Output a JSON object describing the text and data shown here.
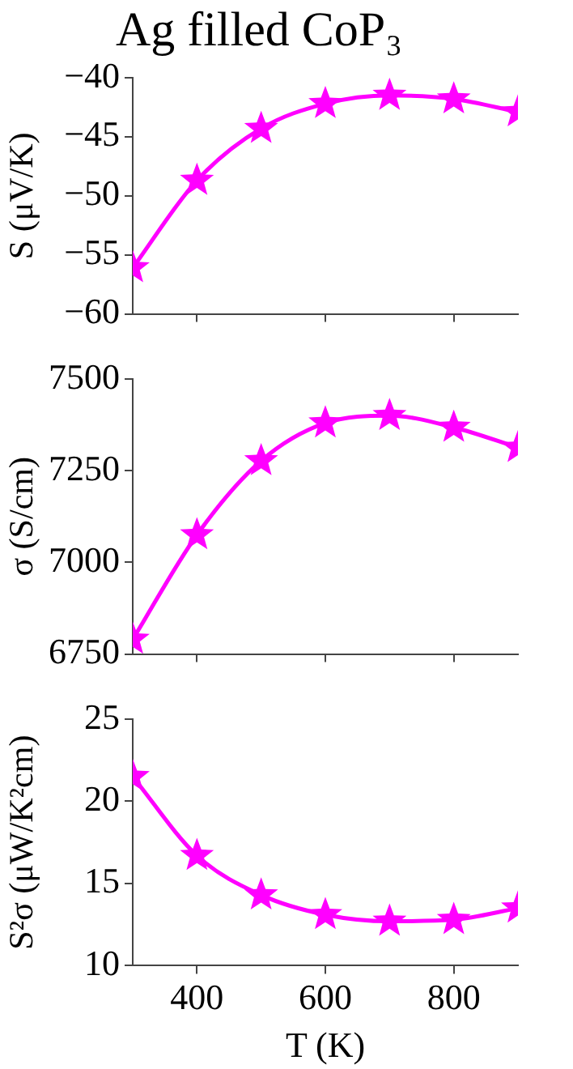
{
  "chart_data": [
    {
      "type": "line",
      "title": "Ag filled CoP₃",
      "ylabel": "S (μV/K)",
      "x": [
        300,
        400,
        500,
        600,
        700,
        800,
        900
      ],
      "series": [
        {
          "color": "#ff00ff",
          "values": [
            -56.1,
            -48.7,
            -44.3,
            -42.2,
            -41.5,
            -41.8,
            -42.9
          ]
        }
      ],
      "xlim": [
        300,
        900
      ],
      "xticks": [
        400,
        600,
        800
      ],
      "ylim": [
        -60,
        -40
      ],
      "yticks": [
        {
          "value": -60,
          "label": "−60"
        },
        {
          "value": -55,
          "label": "−55"
        },
        {
          "value": -50,
          "label": "−50"
        },
        {
          "value": -45,
          "label": "−45"
        },
        {
          "value": -40,
          "label": "−40"
        }
      ],
      "marker": "star",
      "tick_labels": "y"
    },
    {
      "type": "line",
      "ylabel": "σ (S/cm)",
      "x": [
        300,
        400,
        500,
        600,
        700,
        800,
        900
      ],
      "series": [
        {
          "color": "#ff00ff",
          "values": [
            6790,
            7075,
            7277,
            7380,
            7400,
            7368,
            7313
          ]
        }
      ],
      "xlim": [
        300,
        900
      ],
      "xticks": [
        400,
        600,
        800
      ],
      "ylim": [
        6750,
        7500
      ],
      "yticks": [
        6750,
        7000,
        7250,
        7500
      ],
      "marker": "star",
      "tick_labels": "y"
    },
    {
      "type": "line",
      "ylabel": "S²σ (μW/K²cm)",
      "xlabel": "T (K)",
      "x": [
        300,
        400,
        500,
        600,
        700,
        800,
        900
      ],
      "series": [
        {
          "color": "#ff00ff",
          "values": [
            21.5,
            16.7,
            14.3,
            13.1,
            12.7,
            12.8,
            13.5
          ]
        }
      ],
      "xlim": [
        300,
        900
      ],
      "xticks": [
        400,
        600,
        800
      ],
      "ylim": [
        10,
        25
      ],
      "yticks": [
        10,
        15,
        20,
        25
      ],
      "marker": "star"
    }
  ]
}
